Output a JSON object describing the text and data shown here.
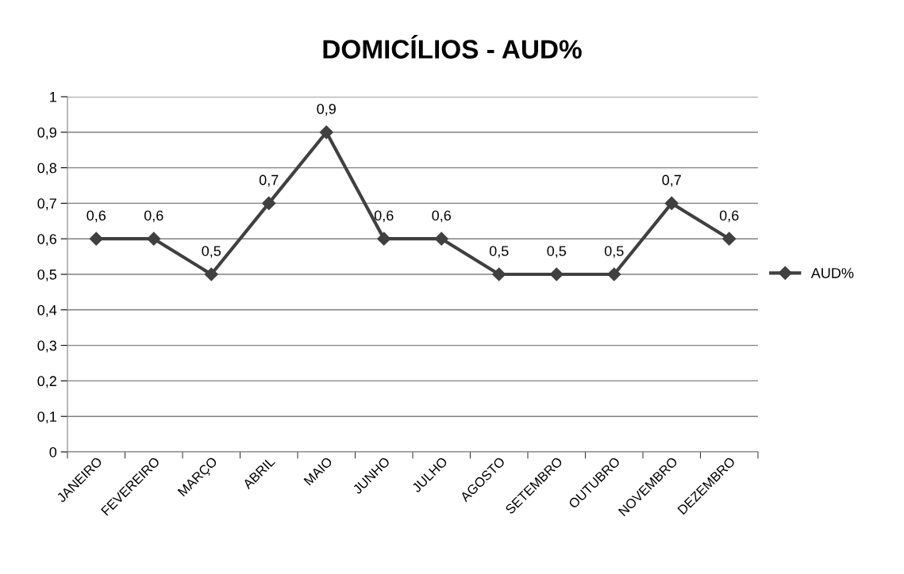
{
  "chart_data": {
    "type": "line",
    "title": "DOMICÍLIOS - AUD%",
    "categories": [
      "JANEIRO",
      "FEVEREIRO",
      "MARÇO",
      "ABRIL",
      "MAIO",
      "JUNHO",
      "JULHO",
      "AGOSTO",
      "SETEMBRO",
      "OUTUBRO",
      "NOVEMBRO",
      "DEZEMBRO"
    ],
    "series": [
      {
        "name": "AUD%",
        "color": "#404040",
        "values": [
          0.6,
          0.6,
          0.5,
          0.7,
          0.9,
          0.6,
          0.6,
          0.5,
          0.5,
          0.5,
          0.7,
          0.6
        ],
        "value_labels": [
          "0,6",
          "0,6",
          "0,5",
          "0,7",
          "0,9",
          "0,6",
          "0,6",
          "0,5",
          "0,5",
          "0,5",
          "0,7",
          "0,6"
        ]
      }
    ],
    "ylim": [
      0,
      1
    ],
    "yticks": [
      0,
      {
        "value": 0.1,
        "label": "0,1"
      },
      {
        "value": 0.2,
        "label": "0,2"
      },
      {
        "value": 0.3,
        "label": "0,3"
      },
      {
        "value": 0.4,
        "label": "0,4"
      },
      {
        "value": 0.5,
        "label": "0,5"
      },
      {
        "value": 0.6,
        "label": "0,6"
      },
      {
        "value": 0.7,
        "label": "0,7"
      },
      {
        "value": 0.8,
        "label": "0,8"
      },
      {
        "value": 0.9,
        "label": "0,9"
      },
      1
    ],
    "grid": "y",
    "legend": "right",
    "marker": "diamond",
    "line_style": "solid"
  }
}
